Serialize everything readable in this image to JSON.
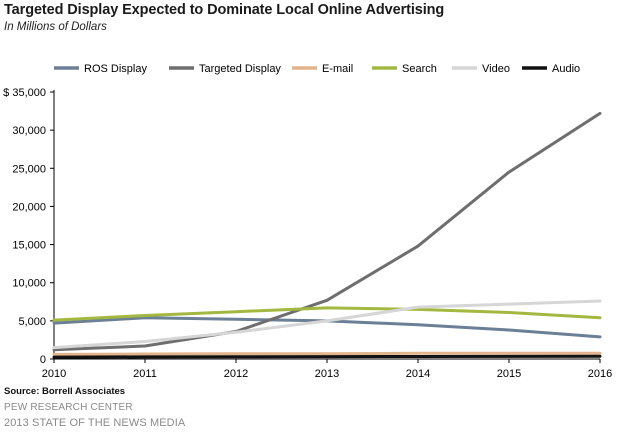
{
  "chart_data": {
    "type": "line",
    "title": "Targeted Display Expected to Dominate Local Online Advertising",
    "subtitle": "In Millions of Dollars",
    "x": [
      "2010",
      "2011",
      "2012",
      "2013",
      "2014",
      "2015",
      "2016"
    ],
    "ylim": [
      0,
      35000
    ],
    "yticks": [
      "$ 35,000",
      "30,000",
      "25,000",
      "20,000",
      "15,000",
      "10,000",
      "5,000",
      "0"
    ],
    "ytick_values": [
      35000,
      30000,
      25000,
      20000,
      15000,
      10000,
      5000,
      0
    ],
    "grid": false,
    "legend": "top",
    "series": [
      {
        "name": "ROS Display",
        "color": "#6b7f96",
        "values": [
          4700,
          5400,
          5200,
          5000,
          4500,
          3800,
          2900
        ]
      },
      {
        "name": "Targeted Display",
        "color": "#6e6e6e",
        "values": [
          1200,
          1700,
          3600,
          7700,
          14800,
          24500,
          32200
        ]
      },
      {
        "name": "E-mail",
        "color": "#e2b48c",
        "values": [
          600,
          650,
          700,
          700,
          750,
          750,
          750
        ]
      },
      {
        "name": "Search",
        "color": "#a3b840",
        "values": [
          5100,
          5700,
          6200,
          6700,
          6500,
          6100,
          5400
        ]
      },
      {
        "name": "Video",
        "color": "#d6d6d6",
        "values": [
          1500,
          2300,
          3500,
          5000,
          6800,
          7200,
          7600
        ]
      },
      {
        "name": "Audio",
        "color": "#111111",
        "values": [
          250,
          270,
          290,
          310,
          330,
          340,
          350
        ]
      }
    ]
  },
  "footer": {
    "source": "Source: Borrell Associates",
    "org": "PEW RESEARCH CENTER",
    "report": "2013 STATE OF THE NEWS MEDIA"
  }
}
